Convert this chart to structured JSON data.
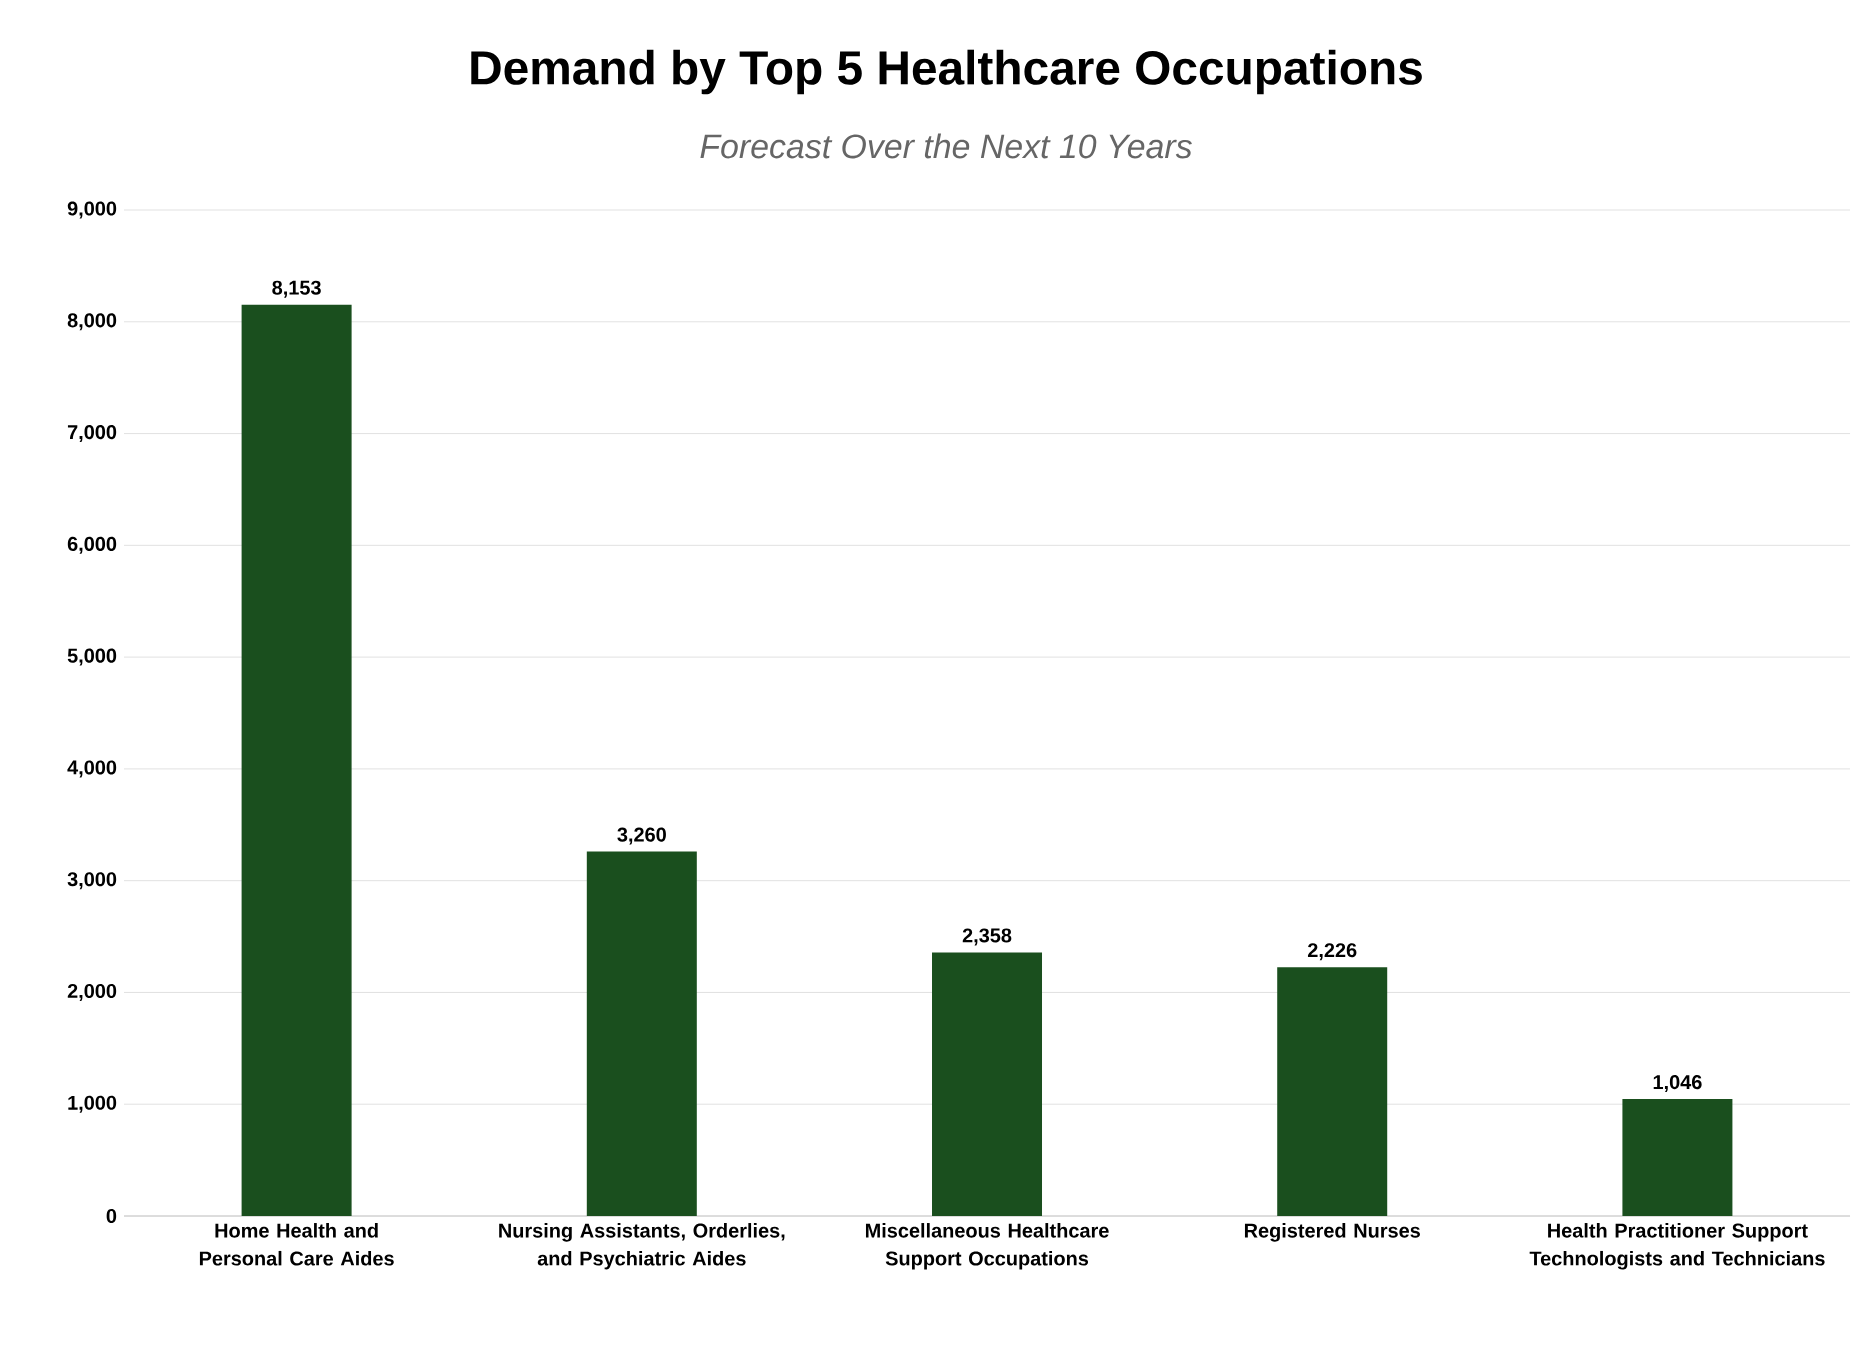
{
  "chart_data": {
    "type": "bar",
    "title": "Demand by Top 5 Healthcare Occupations",
    "subtitle": "Forecast Over the Next 10 Years",
    "categories": [
      "Home Health and Personal Care Aides",
      "Nursing Assistants, Orderlies, and Psychiatric Aides",
      "Miscellaneous Healthcare Support Occupations",
      "Registered Nurses",
      "Health Practitioner Support Technologists and Technicians"
    ],
    "values": [
      8153,
      3260,
      2358,
      2226,
      1046
    ],
    "value_labels": [
      "8,153",
      "3,260",
      "2,358",
      "2,226",
      "1,046"
    ],
    "color": "#1a4f1e",
    "ylim": [
      0,
      9000
    ],
    "yticks": [
      0,
      {
        "value": 1000,
        "label": "1,000"
      },
      {
        "value": 2000,
        "label": "2,000"
      },
      {
        "value": 3000,
        "label": "3,000"
      },
      {
        "value": 4000,
        "label": "4,000"
      },
      {
        "value": 5000,
        "label": "5,000"
      },
      {
        "value": 6000,
        "label": "6,000"
      },
      {
        "value": 7000,
        "label": "7,000"
      },
      {
        "value": 8000,
        "label": "8,000"
      },
      {
        "value": 9000,
        "label": "9,000"
      }
    ],
    "grid": "y"
  }
}
